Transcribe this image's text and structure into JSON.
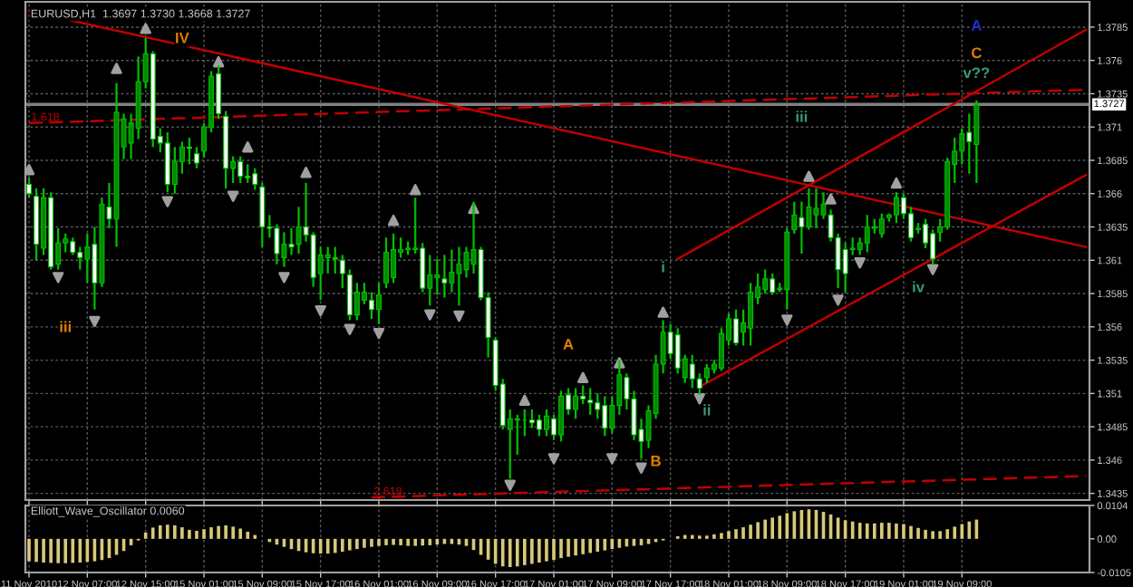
{
  "chart_data": [
    {
      "type": "candlestick",
      "title": "EURUSD,H1  1.3697 1.3730 1.3668 1.3727",
      "categories": [
        "11 Nov 2010",
        null,
        null,
        null,
        null,
        null,
        null,
        null,
        "12 Nov 07:00",
        null,
        null,
        null,
        null,
        null,
        null,
        null,
        "12 Nov 15:00",
        null,
        null,
        null,
        null,
        null,
        null,
        null,
        "15 Nov 01:00",
        null,
        null,
        null,
        null,
        null,
        null,
        null,
        "15 Nov 09:00",
        null,
        null,
        null,
        null,
        null,
        null,
        null,
        "15 Nov 17:00",
        null,
        null,
        null,
        null,
        null,
        null,
        null,
        "16 Nov 01:00",
        null,
        null,
        null,
        null,
        null,
        null,
        null,
        "16 Nov 09:00",
        null,
        null,
        null,
        null,
        null,
        null,
        null,
        "16 Nov 17:00",
        null,
        null,
        null,
        null,
        null,
        null,
        null,
        "17 Nov 01:00",
        null,
        null,
        null,
        null,
        null,
        null,
        null,
        "17 Nov 09:00",
        null,
        null,
        null,
        null,
        null,
        null,
        null,
        "17 Nov 17:00",
        null,
        null,
        null,
        null,
        null,
        null,
        null,
        "18 Nov 01:00",
        null,
        null,
        null,
        null,
        null,
        null,
        null,
        "18 Nov 09:00",
        null,
        null,
        null,
        null,
        null,
        null,
        null,
        "18 Nov 17:00",
        null,
        null,
        null,
        null,
        null,
        null,
        null,
        "19 Nov 01:00",
        null,
        null,
        null,
        null,
        null,
        null,
        null,
        "19 Nov 09:00",
        null,
        null,
        null,
        null,
        null,
        null,
        null,
        null,
        null,
        null,
        null,
        null,
        null,
        null,
        null,
        null,
        null
      ],
      "ohlc": [
        [
          1.3667,
          1.3672,
          1.3657,
          1.366
        ],
        [
          1.3658,
          1.3664,
          1.361,
          1.3622
        ],
        [
          1.3619,
          1.3664,
          1.3614,
          1.3657
        ],
        [
          1.3657,
          1.3661,
          1.3603,
          1.3605
        ],
        [
          1.3607,
          1.3634,
          1.3603,
          1.3623
        ],
        [
          1.3623,
          1.363,
          1.3616,
          1.3626
        ],
        [
          1.3624,
          1.3627,
          1.3614,
          1.3616
        ],
        [
          1.3616,
          1.362,
          1.3603,
          1.3612
        ],
        [
          1.3611,
          1.363,
          1.3593,
          1.362
        ],
        [
          1.3622,
          1.3635,
          1.3573,
          1.3593
        ],
        [
          1.3593,
          1.3657,
          1.359,
          1.3652
        ],
        [
          1.365,
          1.3668,
          1.3634,
          1.3641
        ],
        [
          1.3641,
          1.3743,
          1.362,
          1.3721
        ],
        [
          1.3695,
          1.372,
          1.3686,
          1.3716
        ],
        [
          1.3698,
          1.372,
          1.3686,
          1.3713
        ],
        [
          1.3709,
          1.3763,
          1.3701,
          1.3744
        ],
        [
          1.3744,
          1.3777,
          1.3739,
          1.3765
        ],
        [
          1.3765,
          1.3767,
          1.3695,
          1.3701
        ],
        [
          1.3703,
          1.3709,
          1.3691,
          1.3698
        ],
        [
          1.3698,
          1.3706,
          1.3661,
          1.3667
        ],
        [
          1.3667,
          1.3695,
          1.366,
          1.3684
        ],
        [
          1.3684,
          1.3699,
          1.3675,
          1.3695
        ],
        [
          1.3695,
          1.3702,
          1.3682,
          1.3694
        ],
        [
          1.369,
          1.3695,
          1.3679,
          1.3683
        ],
        [
          1.3692,
          1.3713,
          1.3687,
          1.371
        ],
        [
          1.371,
          1.3752,
          1.3706,
          1.3748
        ],
        [
          1.375,
          1.3756,
          1.3716,
          1.372
        ],
        [
          1.3718,
          1.3722,
          1.3664,
          1.3679
        ],
        [
          1.3679,
          1.3688,
          1.3668,
          1.3684
        ],
        [
          1.3684,
          1.3688,
          1.3668,
          1.3673
        ],
        [
          1.3673,
          1.3682,
          1.3668,
          1.3672
        ],
        [
          1.3675,
          1.3679,
          1.3663,
          1.3667
        ],
        [
          1.3665,
          1.3668,
          1.362,
          1.3635
        ],
        [
          1.3635,
          1.3644,
          1.3627,
          1.3634
        ],
        [
          1.3634,
          1.3637,
          1.3607,
          1.3615
        ],
        [
          1.3612,
          1.3631,
          1.3605,
          1.3622
        ],
        [
          1.3622,
          1.3634,
          1.3614,
          1.362
        ],
        [
          1.3622,
          1.365,
          1.3615,
          1.3635
        ],
        [
          1.3635,
          1.3668,
          1.3624,
          1.3629
        ],
        [
          1.3629,
          1.3631,
          1.359,
          1.3597
        ],
        [
          1.36,
          1.362,
          1.358,
          1.3614
        ],
        [
          1.3612,
          1.362,
          1.36,
          1.3614
        ],
        [
          1.3612,
          1.362,
          1.36,
          1.3611
        ],
        [
          1.361,
          1.3614,
          1.3589,
          1.36
        ],
        [
          1.3599,
          1.3603,
          1.3565,
          1.3569
        ],
        [
          1.3569,
          1.3593,
          1.3565,
          1.3586
        ],
        [
          1.358,
          1.3593,
          1.3577,
          1.3586
        ],
        [
          1.358,
          1.3586,
          1.3566,
          1.3573
        ],
        [
          1.3573,
          1.3593,
          1.3562,
          1.3584
        ],
        [
          1.3593,
          1.3627,
          1.3589,
          1.3616
        ],
        [
          1.3597,
          1.363,
          1.3593,
          1.3618
        ],
        [
          1.3616,
          1.3627,
          1.3612,
          1.3618
        ],
        [
          1.3618,
          1.3624,
          1.3614,
          1.3619
        ],
        [
          1.3618,
          1.3657,
          1.3615,
          1.3619
        ],
        [
          1.3619,
          1.3623,
          1.3586,
          1.3589
        ],
        [
          1.3589,
          1.3614,
          1.3576,
          1.3599
        ],
        [
          1.3597,
          1.3611,
          1.3584,
          1.3599
        ],
        [
          1.3596,
          1.3614,
          1.3582,
          1.3593
        ],
        [
          1.3593,
          1.3618,
          1.3586,
          1.3601
        ],
        [
          1.36,
          1.362,
          1.3576,
          1.3607
        ],
        [
          1.3603,
          1.362,
          1.3597,
          1.3616
        ],
        [
          1.3607,
          1.3654,
          1.36,
          1.3618
        ],
        [
          1.3618,
          1.362,
          1.358,
          1.3582
        ],
        [
          1.3582,
          1.3586,
          1.3537,
          1.3552
        ],
        [
          1.355,
          1.3552,
          1.3512,
          1.3516
        ],
        [
          1.3517,
          1.3521,
          1.3483,
          1.3486
        ],
        [
          1.3483,
          1.3498,
          1.3446,
          1.3491
        ],
        [
          1.349,
          1.3494,
          1.3464,
          1.3491
        ],
        [
          1.349,
          1.3498,
          1.3478,
          1.349
        ],
        [
          1.349,
          1.3498,
          1.3484,
          1.3488
        ],
        [
          1.349,
          1.3494,
          1.3478,
          1.3483
        ],
        [
          1.3483,
          1.3498,
          1.3478,
          1.3493
        ],
        [
          1.3491,
          1.3494,
          1.3475,
          1.3479
        ],
        [
          1.3479,
          1.3512,
          1.3474,
          1.3508
        ],
        [
          1.3509,
          1.3514,
          1.3494,
          1.3498
        ],
        [
          1.3498,
          1.3514,
          1.3491,
          1.3508
        ],
        [
          1.3508,
          1.3516,
          1.3502,
          1.3506
        ],
        [
          1.3505,
          1.3514,
          1.3494,
          1.3503
        ],
        [
          1.3503,
          1.351,
          1.3491,
          1.3498
        ],
        [
          1.3501,
          1.3508,
          1.3478,
          1.3484
        ],
        [
          1.3484,
          1.3508,
          1.348,
          1.3501
        ],
        [
          1.3501,
          1.3535,
          1.3494,
          1.3524
        ],
        [
          1.3522,
          1.3525,
          1.3498,
          1.3506
        ],
        [
          1.3506,
          1.3512,
          1.3475,
          1.3479
        ],
        [
          1.3483,
          1.3491,
          1.3461,
          1.3474
        ],
        [
          1.3475,
          1.3501,
          1.3469,
          1.3497
        ],
        [
          1.3495,
          1.3539,
          1.3491,
          1.3532
        ],
        [
          1.3532,
          1.3565,
          1.3525,
          1.3556
        ],
        [
          1.3556,
          1.3562,
          1.3536,
          1.354
        ],
        [
          1.3554,
          1.3559,
          1.3525,
          1.3529
        ],
        [
          1.3522,
          1.3539,
          1.3518,
          1.3536
        ],
        [
          1.3532,
          1.3539,
          1.3514,
          1.3521
        ],
        [
          1.3521,
          1.3525,
          1.3509,
          1.3514
        ],
        [
          1.3522,
          1.3532,
          1.3518,
          1.3529
        ],
        [
          1.3528,
          1.3535,
          1.3525,
          1.3532
        ],
        [
          1.3529,
          1.3559,
          1.3527,
          1.3555
        ],
        [
          1.355,
          1.357,
          1.3546,
          1.3566
        ],
        [
          1.3566,
          1.3573,
          1.3546,
          1.3548
        ],
        [
          1.3556,
          1.3573,
          1.3546,
          1.3563
        ],
        [
          1.3559,
          1.3593,
          1.3546,
          1.3586
        ],
        [
          1.3582,
          1.36,
          1.3577,
          1.359
        ],
        [
          1.3588,
          1.3603,
          1.3585,
          1.3596
        ],
        [
          1.3596,
          1.36,
          1.3584,
          1.3586
        ],
        [
          1.3588,
          1.3593,
          1.3586,
          1.3589
        ],
        [
          1.3588,
          1.3634,
          1.3573,
          1.3631
        ],
        [
          1.3633,
          1.3654,
          1.363,
          1.3644
        ],
        [
          1.3642,
          1.3654,
          1.3615,
          1.3635
        ],
        [
          1.3635,
          1.3664,
          1.3633,
          1.365
        ],
        [
          1.3644,
          1.3664,
          1.3634,
          1.3649
        ],
        [
          1.3644,
          1.3661,
          1.3641,
          1.3652
        ],
        [
          1.3644,
          1.3648,
          1.3624,
          1.3627
        ],
        [
          1.3627,
          1.363,
          1.3589,
          1.3603
        ],
        [
          1.3618,
          1.3623,
          1.3586,
          1.36
        ],
        [
          1.3618,
          1.3627,
          1.3614,
          1.3619
        ],
        [
          1.3618,
          1.3627,
          1.3614,
          1.3623
        ],
        [
          1.3623,
          1.3644,
          1.3616,
          1.3635
        ],
        [
          1.3634,
          1.3641,
          1.363,
          1.3635
        ],
        [
          1.363,
          1.3645,
          1.3627,
          1.3641
        ],
        [
          1.3642,
          1.3645,
          1.3639,
          1.3644
        ],
        [
          1.3644,
          1.3661,
          1.3638,
          1.3657
        ],
        [
          1.3657,
          1.366,
          1.3641,
          1.3645
        ],
        [
          1.3645,
          1.365,
          1.3624,
          1.3627
        ],
        [
          1.3633,
          1.3638,
          1.363,
          1.3634
        ],
        [
          1.3637,
          1.3641,
          1.3619,
          1.3623
        ],
        [
          1.363,
          1.3633,
          1.3607,
          1.3611
        ],
        [
          1.3631,
          1.3641,
          1.3624,
          1.3635
        ],
        [
          1.3635,
          1.3687,
          1.3633,
          1.3684
        ],
        [
          1.3682,
          1.3702,
          1.3668,
          1.3692
        ],
        [
          1.3692,
          1.3709,
          1.3682,
          1.3705
        ],
        [
          1.3706,
          1.372,
          1.3675,
          1.3699
        ],
        [
          1.3697,
          1.373,
          1.3668,
          1.3727
        ],
        null,
        null,
        null,
        null,
        null,
        null,
        null,
        null,
        null,
        null,
        null,
        null,
        null,
        null,
        null
      ],
      "series": [
        {
          "type": "scatter",
          "marker": "triangle",
          "color": "#a0a0a0",
          "values": [
            1.3678,
            null,
            null,
            null,
            null,
            null,
            null,
            null,
            null,
            null,
            null,
            null,
            1.3754,
            null,
            null,
            null,
            1.3784,
            null,
            null,
            null,
            null,
            null,
            null,
            null,
            null,
            null,
            1.3759,
            null,
            null,
            null,
            1.3695,
            null,
            null,
            null,
            null,
            null,
            null,
            null,
            1.3676,
            null,
            null,
            null,
            null,
            null,
            null,
            null,
            null,
            null,
            null,
            null,
            1.364,
            null,
            null,
            1.3663,
            null,
            null,
            null,
            null,
            null,
            null,
            null,
            1.3649,
            null,
            null,
            null,
            null,
            null,
            null,
            1.3505,
            null,
            null,
            null,
            null,
            null,
            null,
            null,
            1.3522,
            null,
            null,
            null,
            null,
            1.3533,
            null,
            null,
            null,
            null,
            null,
            1.3571,
            null,
            null,
            null,
            null,
            null,
            null,
            null,
            null,
            null,
            null,
            null,
            null,
            null,
            null,
            null,
            null,
            null,
            null,
            null,
            1.3673,
            null,
            null,
            1.3656,
            null,
            null,
            null,
            null,
            null,
            null,
            null,
            null,
            1.3668,
            null,
            null,
            null,
            null,
            null,
            null,
            null,
            null,
            null,
            null,
            null,
            null,
            null,
            null,
            null,
            null,
            null,
            null,
            null,
            null,
            null,
            null,
            null,
            null,
            null,
            null
          ]
        },
        {
          "type": "scatter",
          "marker": "triangle",
          "color": "#a0a0a0",
          "values": [
            null,
            null,
            null,
            null,
            1.3597,
            null,
            null,
            null,
            null,
            1.3564,
            null,
            null,
            null,
            null,
            null,
            null,
            null,
            null,
            null,
            1.3654,
            null,
            null,
            null,
            null,
            null,
            null,
            null,
            null,
            1.3658,
            null,
            null,
            null,
            null,
            null,
            null,
            1.3597,
            null,
            null,
            null,
            null,
            1.3572,
            null,
            null,
            null,
            1.3558,
            null,
            null,
            null,
            1.3555,
            null,
            null,
            null,
            null,
            null,
            null,
            1.3569,
            null,
            null,
            null,
            1.3568,
            null,
            null,
            null,
            null,
            null,
            null,
            1.3441,
            null,
            null,
            null,
            null,
            null,
            1.3461,
            null,
            null,
            null,
            null,
            null,
            null,
            null,
            1.3461,
            null,
            null,
            null,
            1.3454,
            null,
            null,
            null,
            null,
            null,
            null,
            null,
            1.3506,
            null,
            null,
            null,
            null,
            null,
            null,
            null,
            null,
            null,
            null,
            null,
            1.3565,
            null,
            null,
            null,
            null,
            null,
            null,
            1.358,
            null,
            null,
            1.3608,
            null,
            null,
            null,
            null,
            null,
            null,
            null,
            null,
            null,
            1.3603,
            null,
            null,
            null,
            null,
            null,
            null,
            null,
            null,
            null,
            null,
            null,
            null,
            null,
            null,
            null,
            null,
            null,
            null,
            null,
            null,
            null
          ]
        },
        {
          "type": "line",
          "color": "#c00000",
          "line_style": "solid",
          "values": [
            1.3797,
            null,
            null,
            null,
            null,
            null,
            null,
            null,
            null,
            null,
            null,
            null,
            null,
            null,
            null,
            null,
            null,
            null,
            null,
            null,
            null,
            null,
            null,
            null,
            null,
            null,
            null,
            null,
            null,
            null,
            null,
            null,
            null,
            null,
            null,
            null,
            null,
            null,
            null,
            null,
            null,
            null,
            null,
            null,
            null,
            null,
            null,
            null,
            null,
            null,
            null,
            null,
            null,
            null,
            null,
            null,
            null,
            null,
            null,
            null,
            null,
            null,
            null,
            null,
            null,
            null,
            null,
            null,
            null,
            null,
            null,
            null,
            null,
            null,
            null,
            null,
            null,
            null,
            null,
            null,
            null,
            null,
            null,
            null,
            null,
            null,
            null,
            null,
            null,
            null,
            null,
            null,
            null,
            null,
            null,
            null,
            null,
            null,
            null,
            null,
            null,
            null,
            null,
            null,
            null,
            null,
            null,
            null,
            null,
            null,
            null,
            null,
            null,
            null,
            null,
            null,
            null,
            null,
            null,
            null,
            null,
            null,
            null,
            null,
            null,
            null,
            null,
            null,
            null,
            null,
            null,
            null,
            null,
            null,
            null,
            null,
            null,
            null,
            null,
            null,
            null,
            null,
            null,
            null,
            null,
            1.362
          ]
        },
        {
          "type": "line",
          "color": "#c00000",
          "line_style": "solid",
          "values": [
            null,
            null,
            null,
            null,
            null,
            null,
            null,
            null,
            null,
            null,
            null,
            null,
            null,
            null,
            null,
            null,
            null,
            null,
            null,
            null,
            null,
            null,
            null,
            null,
            null,
            null,
            null,
            null,
            null,
            null,
            null,
            null,
            null,
            null,
            null,
            null,
            null,
            null,
            null,
            null,
            null,
            null,
            null,
            null,
            null,
            null,
            null,
            null,
            null,
            null,
            null,
            null,
            null,
            null,
            null,
            null,
            null,
            null,
            null,
            null,
            null,
            null,
            null,
            null,
            null,
            null,
            null,
            null,
            null,
            null,
            null,
            null,
            null,
            null,
            null,
            null,
            null,
            null,
            null,
            null,
            null,
            null,
            null,
            null,
            null,
            null,
            null,
            null,
            null,
            1.3611,
            null,
            null,
            null,
            null,
            null,
            null,
            null,
            null,
            null,
            null,
            null,
            null,
            null,
            null,
            null,
            null,
            null,
            null,
            null,
            null,
            null,
            null,
            null,
            null,
            null,
            null,
            null,
            null,
            null,
            null,
            null,
            null,
            null,
            null,
            null,
            null,
            null,
            null,
            null,
            null,
            null,
            null,
            null,
            null,
            null,
            null,
            null,
            null,
            null,
            null,
            null,
            null,
            null,
            null,
            null,
            1.3783
          ]
        },
        {
          "type": "line",
          "color": "#c00000",
          "line_style": "solid",
          "values": [
            null,
            null,
            null,
            null,
            null,
            null,
            null,
            null,
            null,
            null,
            null,
            null,
            null,
            null,
            null,
            null,
            null,
            null,
            null,
            null,
            null,
            null,
            null,
            null,
            null,
            null,
            null,
            null,
            null,
            null,
            null,
            null,
            null,
            null,
            null,
            null,
            null,
            null,
            null,
            null,
            null,
            null,
            null,
            null,
            null,
            null,
            null,
            null,
            null,
            null,
            null,
            null,
            null,
            null,
            null,
            null,
            null,
            null,
            null,
            null,
            null,
            null,
            null,
            null,
            null,
            null,
            null,
            null,
            null,
            null,
            null,
            null,
            null,
            null,
            null,
            null,
            null,
            null,
            null,
            null,
            null,
            null,
            null,
            null,
            null,
            null,
            null,
            null,
            null,
            null,
            null,
            null,
            1.3515,
            null,
            null,
            null,
            null,
            null,
            null,
            null,
            null,
            null,
            null,
            null,
            null,
            null,
            null,
            null,
            null,
            null,
            null,
            null,
            null,
            null,
            null,
            null,
            null,
            null,
            null,
            null,
            null,
            null,
            null,
            null,
            null,
            null,
            null,
            null,
            null,
            null,
            null,
            null,
            null,
            null,
            null,
            null,
            null,
            null,
            null,
            null,
            null,
            null,
            null,
            null,
            null,
            1.3674
          ]
        },
        {
          "name": "1.618",
          "type": "line",
          "color": "#c00000",
          "line_style": "dashed",
          "values": [
            1.3713,
            null,
            null,
            null,
            null,
            null,
            null,
            null,
            null,
            null,
            null,
            null,
            null,
            null,
            null,
            null,
            null,
            null,
            null,
            null,
            null,
            null,
            null,
            null,
            null,
            null,
            null,
            null,
            null,
            null,
            null,
            null,
            null,
            null,
            null,
            null,
            null,
            null,
            null,
            null,
            null,
            null,
            null,
            null,
            null,
            null,
            null,
            null,
            null,
            null,
            null,
            null,
            null,
            null,
            null,
            null,
            null,
            null,
            null,
            null,
            null,
            null,
            null,
            null,
            null,
            null,
            null,
            null,
            null,
            null,
            null,
            null,
            null,
            null,
            null,
            null,
            null,
            null,
            null,
            null,
            null,
            null,
            null,
            null,
            null,
            null,
            null,
            null,
            null,
            null,
            null,
            null,
            null,
            null,
            null,
            null,
            null,
            null,
            null,
            null,
            null,
            null,
            null,
            null,
            null,
            null,
            null,
            null,
            null,
            null,
            null,
            null,
            null,
            null,
            null,
            null,
            null,
            null,
            null,
            null,
            null,
            null,
            null,
            null,
            null,
            null,
            null,
            null,
            null,
            null,
            null,
            null,
            null,
            null,
            null,
            null,
            null,
            null,
            null,
            null,
            null,
            null,
            null,
            null,
            null,
            1.3738
          ]
        },
        {
          "name": "2.618",
          "type": "line",
          "color": "#c00000",
          "line_style": "dashed",
          "values": [
            null,
            null,
            null,
            null,
            null,
            null,
            null,
            null,
            null,
            null,
            null,
            null,
            null,
            null,
            null,
            null,
            null,
            null,
            null,
            null,
            null,
            null,
            null,
            null,
            null,
            null,
            null,
            null,
            null,
            null,
            null,
            null,
            null,
            null,
            null,
            null,
            null,
            null,
            null,
            null,
            null,
            null,
            null,
            null,
            null,
            null,
            null,
            1.3432,
            null,
            null,
            null,
            null,
            null,
            null,
            null,
            null,
            null,
            null,
            null,
            null,
            null,
            null,
            null,
            null,
            null,
            null,
            null,
            null,
            null,
            null,
            null,
            null,
            null,
            null,
            null,
            null,
            null,
            null,
            null,
            null,
            null,
            null,
            null,
            null,
            null,
            null,
            null,
            null,
            null,
            null,
            null,
            null,
            null,
            null,
            null,
            null,
            null,
            null,
            null,
            null,
            null,
            null,
            null,
            null,
            null,
            null,
            null,
            null,
            null,
            null,
            null,
            null,
            null,
            null,
            null,
            null,
            null,
            null,
            null,
            null,
            null,
            null,
            null,
            null,
            null,
            null,
            null,
            null,
            null,
            null,
            null,
            null,
            null,
            null,
            null,
            null,
            null,
            null,
            null,
            null,
            null,
            null,
            null,
            null,
            null,
            1.3448
          ]
        }
      ],
      "ylim": [
        1.343,
        1.3804
      ],
      "yticks": [
        1.3785,
        1.376,
        1.3735,
        1.371,
        1.3685,
        1.366,
        1.3635,
        1.361,
        1.3585,
        1.356,
        1.3535,
        1.351,
        1.3485,
        1.346,
        1.3435
      ],
      "ref_lines": [
        {
          "axis": "y",
          "value": 1.3727,
          "label": "1.3727",
          "color": "#808080"
        }
      ],
      "annotations": [
        "iii",
        "IV",
        "A",
        "B",
        "i",
        "ii",
        "iii",
        "iv",
        "v??",
        "C",
        "A"
      ],
      "grid": true,
      "tick_labels": "y"
    },
    {
      "type": "bar",
      "title": "Elliott_Wave_Oscillator 0.0060",
      "color": "#d8c878",
      "values": [
        -0.007,
        -0.0072,
        -0.0074,
        -0.0075,
        -0.0076,
        -0.0076,
        -0.0075,
        -0.0074,
        -0.0072,
        -0.007,
        -0.0066,
        -0.006,
        -0.005,
        -0.0038,
        -0.002,
        -0.0005,
        0.002,
        0.0035,
        0.0042,
        0.0044,
        0.0042,
        0.0036,
        0.0028,
        0.0025,
        0.003,
        0.0036,
        0.004,
        0.0042,
        0.0038,
        0.0032,
        0.0022,
        0.0012,
        null,
        -0.001,
        -0.0018,
        -0.0025,
        -0.0032,
        -0.0038,
        -0.0042,
        -0.0045,
        -0.0046,
        -0.0046,
        -0.0044,
        -0.004,
        -0.0036,
        -0.0032,
        -0.0028,
        -0.0025,
        -0.0022,
        -0.002,
        -0.0019,
        -0.002,
        -0.0022,
        -0.0022,
        -0.0021,
        -0.002,
        -0.0018,
        -0.0016,
        -0.0016,
        -0.0018,
        -0.0022,
        -0.0035,
        -0.005,
        -0.0065,
        -0.0078,
        -0.0086,
        -0.0088,
        -0.0086,
        -0.0082,
        -0.0078,
        -0.0074,
        -0.007,
        -0.0066,
        -0.006,
        -0.0056,
        -0.0052,
        -0.0048,
        -0.0044,
        -0.004,
        -0.0036,
        -0.0032,
        -0.0028,
        -0.0024,
        -0.0022,
        -0.002,
        -0.0016,
        -0.001,
        -0.0005,
        0.0,
        0.0008,
        0.0012,
        0.0012,
        0.001,
        0.001,
        0.0014,
        0.0018,
        0.0024,
        0.003,
        0.0036,
        0.0044,
        0.0052,
        0.006,
        0.0066,
        0.0072,
        0.008,
        0.0086,
        0.009,
        0.0092,
        0.009,
        0.0084,
        0.0076,
        0.0066,
        0.0058,
        0.0054,
        0.005,
        0.0048,
        0.0048,
        0.005,
        0.005,
        0.0048,
        0.0046,
        0.004,
        0.0034,
        0.0028,
        0.0024,
        0.0024,
        0.003,
        0.0038,
        0.0046,
        0.0054,
        0.006,
        null,
        null,
        null,
        null,
        null,
        null,
        null,
        null,
        null,
        null,
        null,
        null,
        null,
        null,
        null
      ],
      "ylim": [
        -0.0105,
        0.0104
      ],
      "yticks": [
        0.0104,
        {
          "value": 0,
          "label": "0.00"
        },
        -0.0105
      ],
      "grid": "x"
    }
  ]
}
